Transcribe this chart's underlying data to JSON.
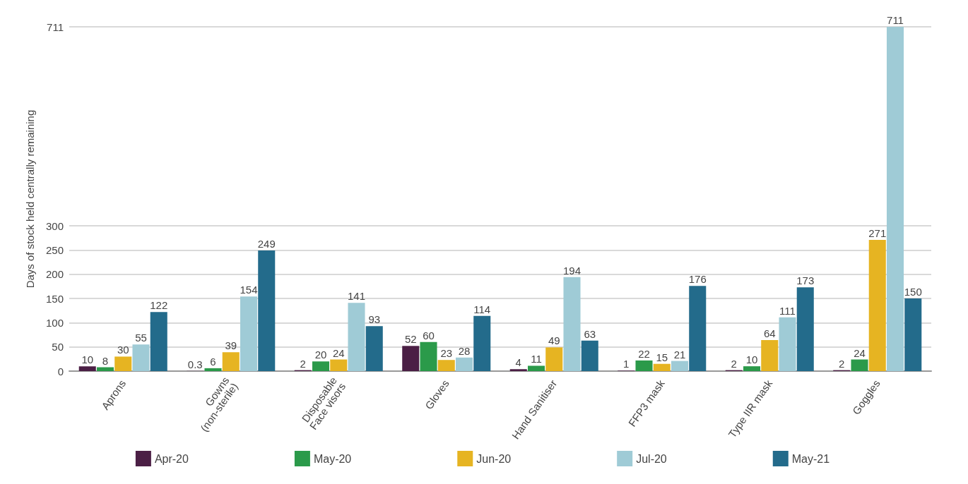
{
  "chart_data": {
    "type": "bar",
    "ylabel": "Days of stock held centrally remaining",
    "categories": [
      "Aprons",
      "Gowns\n(non-sterile)",
      "Disposable\nFace visors",
      "Gloves",
      "Hand Sanitiser",
      "FFP3 mask",
      "Type IIR mask",
      "Goggles"
    ],
    "series": [
      {
        "name": "Apr-20",
        "color": "#4b1f45",
        "values": [
          10,
          0.3,
          2,
          52,
          4,
          1,
          2,
          2
        ]
      },
      {
        "name": "May-20",
        "color": "#2b9a4a",
        "values": [
          8,
          6,
          20,
          60,
          11,
          22,
          10,
          24
        ]
      },
      {
        "name": "Jun-20",
        "color": "#e6b422",
        "values": [
          30,
          39,
          24,
          23,
          49,
          15,
          64,
          271
        ]
      },
      {
        "name": "Jul-20",
        "color": "#9fcbd6",
        "values": [
          55,
          154,
          141,
          28,
          194,
          21,
          111,
          711
        ]
      },
      {
        "name": "May-21",
        "color": "#236b8b",
        "values": [
          122,
          249,
          93,
          114,
          63,
          176,
          173,
          150
        ]
      }
    ],
    "ylim": [
      0,
      711
    ],
    "yticks": [
      0,
      50,
      100,
      150,
      200,
      250,
      300,
      711
    ],
    "grid": "y",
    "legend": "bottom",
    "data_labels": true
  }
}
